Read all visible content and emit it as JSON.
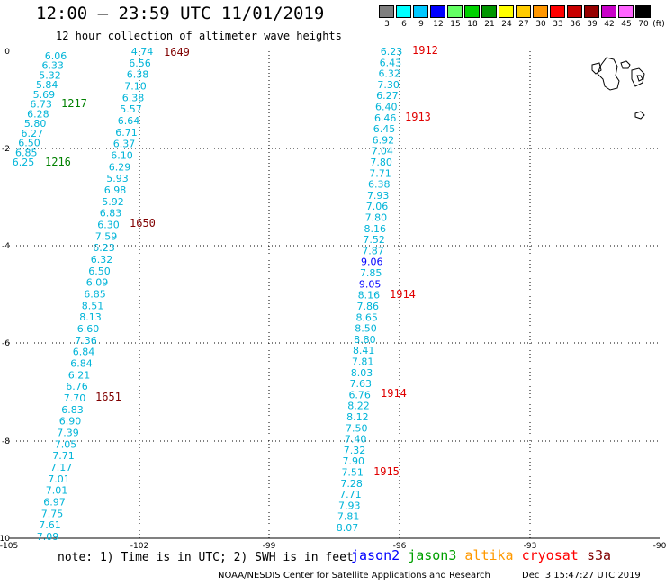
{
  "header": {
    "title": "12:00 — 23:59 UTC 11/01/2019",
    "subtitle": "12 hour collection of altimeter wave heights"
  },
  "scale": {
    "unit": "(ft)",
    "swatches": [
      {
        "label": "3",
        "color": "#7f7f7f"
      },
      {
        "label": "6",
        "color": "#00ffff"
      },
      {
        "label": "9",
        "color": "#00c8ff"
      },
      {
        "label": "12",
        "color": "#0000ff"
      },
      {
        "label": "15",
        "color": "#64ff64"
      },
      {
        "label": "18",
        "color": "#00d200"
      },
      {
        "label": "21",
        "color": "#009600"
      },
      {
        "label": "24",
        "color": "#ffff00"
      },
      {
        "label": "27",
        "color": "#ffcc00"
      },
      {
        "label": "30",
        "color": "#ff9600"
      },
      {
        "label": "33",
        "color": "#ff0000"
      },
      {
        "label": "36",
        "color": "#c80000"
      },
      {
        "label": "39",
        "color": "#960000"
      },
      {
        "label": "42",
        "color": "#c800c8"
      },
      {
        "label": "45",
        "color": "#ff64ff"
      },
      {
        "label": "70",
        "color": "#000000"
      }
    ]
  },
  "axes": {
    "x_ticks": [
      "-105",
      "-102",
      "-99",
      "-96",
      "-93",
      "-90"
    ],
    "y_ticks": [
      "0",
      "-2",
      "-4",
      "-6",
      "-8",
      "-10"
    ]
  },
  "track_a": {
    "values": [
      "6.06",
      "6.33",
      "5.32",
      "5.84",
      "5.69",
      "6.73",
      "6.28",
      "5.80",
      "6.27",
      "6.50",
      "6.85",
      "6.25"
    ],
    "times": [
      {
        "text": "1217",
        "color": "#008000"
      },
      {
        "text": "1216",
        "color": "#008000"
      }
    ]
  },
  "track_b": {
    "values": [
      "4.74",
      "6.56",
      "6.38",
      "7.10",
      "6.38",
      "5.57",
      "6.64",
      "6.71",
      "6.37",
      "6.10",
      "6.29",
      "5.93",
      "6.98",
      "5.92",
      "6.83",
      "6.30",
      "7.59",
      "6.23",
      "6.32",
      "6.50",
      "6.09",
      "6.85",
      "8.51",
      "8.13",
      "6.60",
      "7.36",
      "6.84",
      "6.84",
      "6.21",
      "6.76",
      "7.70",
      "6.83",
      "6.90",
      "7.39",
      "7.05",
      "7.71",
      "7.17",
      "7.01",
      "7.01",
      "6.97",
      "7.75",
      "7.61",
      "7.09"
    ],
    "times": [
      {
        "text": "1649",
        "color": "#800000"
      },
      {
        "text": "1650",
        "color": "#800000"
      },
      {
        "text": "1651",
        "color": "#800000"
      }
    ]
  },
  "track_c": {
    "values": [
      "6.23",
      "6.43",
      "6.32",
      "7.30",
      "6.27",
      "6.40",
      "6.46",
      "6.45",
      "6.92",
      "7.04",
      "7.80",
      "7.71",
      "6.38",
      "7.93",
      "7.06",
      "7.80",
      "8.16",
      "7.52",
      "7.87",
      "9.06",
      "7.85",
      "9.05",
      "8.16",
      "7.86",
      "8.65",
      "8.50",
      "8.80",
      "8.41",
      "7.81",
      "8.03",
      "7.63",
      "6.76",
      "8.22",
      "8.12",
      "7.50",
      "7.40",
      "7.32",
      "7.90",
      "7.51",
      "7.28",
      "7.71",
      "7.93",
      "7.81",
      "8.07"
    ],
    "times": [
      {
        "text": "1912",
        "color": "#e00000"
      },
      {
        "text": "1913",
        "color": "#e00000"
      },
      {
        "text": "1914",
        "color": "#e00000"
      },
      {
        "text": "1914",
        "color": "#e00000"
      },
      {
        "text": "1915",
        "color": "#e00000"
      }
    ]
  },
  "colors": {
    "swh_6_9": "#00b4d8",
    "swh_9_12": "#0000ff"
  },
  "footer": {
    "note": "note: 1) Time is in UTC; 2) SWH is in feet",
    "satellites": [
      {
        "name": "jason2",
        "color": "#0000ff"
      },
      {
        "name": "jason3",
        "color": "#00a000"
      },
      {
        "name": "altika",
        "color": "#ff9900"
      },
      {
        "name": "cryosat",
        "color": "#ff0000"
      },
      {
        "name": "s3a",
        "color": "#800000"
      }
    ],
    "credit": "NOAA/NESDIS Center for Satellite Applications and Research",
    "timestamp": "Dec  3 15:47:27 UTC 2019"
  }
}
